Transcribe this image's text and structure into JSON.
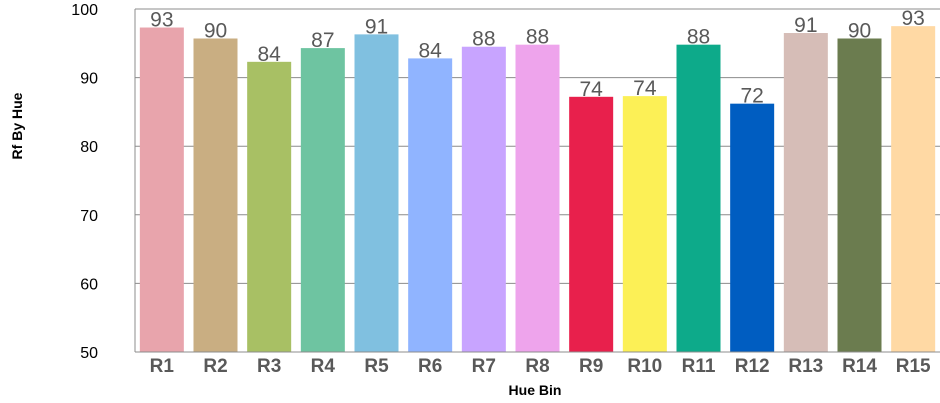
{
  "chart_data": {
    "type": "bar",
    "categories": [
      "R1",
      "R2",
      "R3",
      "R4",
      "R5",
      "R6",
      "R7",
      "R8",
      "R9",
      "R10",
      "R11",
      "R12",
      "R13",
      "R14",
      "R15"
    ],
    "values": [
      93,
      90,
      84,
      87,
      91,
      84,
      88,
      88,
      74,
      74,
      88,
      72,
      91,
      90,
      93
    ],
    "bar_heights": [
      97.3,
      95.7,
      92.3,
      94.3,
      96.3,
      92.8,
      94.5,
      94.8,
      87.2,
      87.3,
      94.8,
      86.2,
      96.5,
      95.7,
      97.5
    ],
    "colors": [
      "#E8A4AC",
      "#C9AE82",
      "#A8C064",
      "#6EC4A1",
      "#80C0E0",
      "#90B4FF",
      "#C8A4FF",
      "#EEA4EC",
      "#E8204C",
      "#FCF056",
      "#0DAA8A",
      "#005DC1",
      "#D6BDB7",
      "#6B7C4F",
      "#FFD9A4"
    ],
    "xlabel": "Hue Bin",
    "ylabel": "Rf By Hue",
    "ylim": [
      50,
      100
    ],
    "yticks": [
      "50",
      "60",
      "70",
      "80",
      "90",
      "100"
    ],
    "grid": true,
    "legend": "none"
  }
}
